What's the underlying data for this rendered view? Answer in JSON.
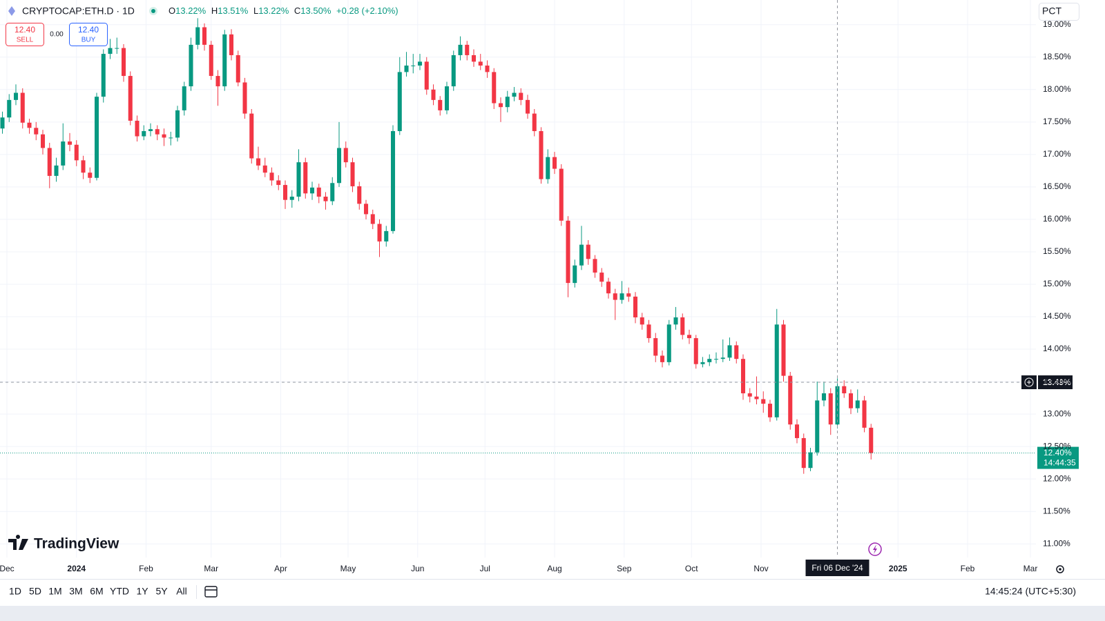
{
  "header": {
    "symbol": "CRYPTOCAP:ETH.D · 1D",
    "ohlc": [
      {
        "key": "O",
        "text": "13.22%"
      },
      {
        "key": "H",
        "text": "13.51%"
      },
      {
        "key": "L",
        "text": "13.22%"
      },
      {
        "key": "C",
        "text": "13.50%"
      }
    ],
    "change": "+0.28 (+2.10%)"
  },
  "trade": {
    "sell_price": "12.40",
    "sell_label": "SELL",
    "spread": "0.00",
    "buy_price": "12.40",
    "buy_label": "BUY"
  },
  "scale_mode": "PCT",
  "logo": "TradingView",
  "toolbar": {
    "ranges": [
      "1D",
      "5D",
      "1M",
      "3M",
      "6M",
      "YTD",
      "1Y",
      "5Y",
      "All"
    ],
    "clock": "14:45:24 (UTC+5:30)"
  },
  "chart_data": {
    "type": "candlestick",
    "up_color": "#089981",
    "down_color": "#f23645",
    "grid": true,
    "xlim": [
      -3.08,
      458.46
    ],
    "ylim": [
      10.79,
      19.38
    ],
    "xticks": [
      {
        "value": 0,
        "label": "Dec"
      },
      {
        "value": 31,
        "label": "2024"
      },
      {
        "value": 62,
        "label": "Feb"
      },
      {
        "value": 91,
        "label": "Mar"
      },
      {
        "value": 122,
        "label": "Apr"
      },
      {
        "value": 152,
        "label": "May"
      },
      {
        "value": 183,
        "label": "Jun"
      },
      {
        "value": 213,
        "label": "Jul"
      },
      {
        "value": 244,
        "label": "Aug"
      },
      {
        "value": 275,
        "label": "Sep"
      },
      {
        "value": 305,
        "label": "Oct"
      },
      {
        "value": 336,
        "label": "Nov"
      },
      {
        "value": 397,
        "label": "2025"
      },
      {
        "value": 428,
        "label": "Feb"
      },
      {
        "value": 456,
        "label": "Mar"
      }
    ],
    "yticks": [
      {
        "value": 11,
        "label": "11.00%"
      },
      {
        "value": 11.5,
        "label": "11.50%"
      },
      {
        "value": 12,
        "label": "12.00%"
      },
      {
        "value": 12.5,
        "label": "12.50%"
      },
      {
        "value": 13,
        "label": "13.00%"
      },
      {
        "value": 13.5,
        "label": "13.50%"
      },
      {
        "value": 14,
        "label": "14.00%"
      },
      {
        "value": 14.5,
        "label": "14.50%"
      },
      {
        "value": 15,
        "label": "15.00%"
      },
      {
        "value": 15.5,
        "label": "15.50%"
      },
      {
        "value": 16,
        "label": "16.00%"
      },
      {
        "value": 16.5,
        "label": "16.50%"
      },
      {
        "value": 17,
        "label": "17.00%"
      },
      {
        "value": 17.5,
        "label": "17.50%"
      },
      {
        "value": 18,
        "label": "18.00%"
      },
      {
        "value": 18.5,
        "label": "18.50%"
      },
      {
        "value": 19,
        "label": "19.00%"
      }
    ],
    "crosshair": {
      "x": 370,
      "x_label": "Fri 06 Dec '24",
      "y": 13.49,
      "y_label": "13.49%"
    },
    "last_price": {
      "value": 12.4,
      "label": "12.40%",
      "countdown": "14:44:35"
    },
    "x": [
      -2,
      1,
      4,
      7,
      10,
      13,
      16,
      19,
      22,
      25,
      28,
      31,
      34,
      37,
      40,
      43,
      46,
      49,
      52,
      55,
      58,
      61,
      64,
      67,
      70,
      73,
      76,
      79,
      82,
      85,
      88,
      91,
      94,
      97,
      100,
      103,
      106,
      109,
      112,
      115,
      118,
      121,
      124,
      127,
      130,
      133,
      136,
      139,
      142,
      145,
      148,
      151,
      154,
      157,
      160,
      163,
      166,
      169,
      172,
      175,
      178,
      181,
      184,
      187,
      190,
      193,
      196,
      199,
      202,
      205,
      208,
      211,
      214,
      217,
      220,
      223,
      226,
      229,
      232,
      235,
      238,
      241,
      244,
      247,
      250,
      253,
      256,
      259,
      262,
      265,
      268,
      271,
      274,
      277,
      280,
      283,
      286,
      289,
      292,
      295,
      298,
      301,
      304,
      307,
      310,
      313,
      316,
      319,
      322,
      325,
      328,
      331,
      334,
      337,
      340,
      343,
      346,
      349,
      352,
      355,
      358,
      361,
      364,
      367,
      370,
      373,
      376,
      379,
      382,
      385
    ],
    "ohlc": [
      [
        17.4,
        17.66,
        17.32,
        17.57
      ],
      [
        17.57,
        17.93,
        17.5,
        17.84
      ],
      [
        17.84,
        18.08,
        17.76,
        17.95
      ],
      [
        17.95,
        18.02,
        17.4,
        17.49
      ],
      [
        17.49,
        17.55,
        17.32,
        17.41
      ],
      [
        17.41,
        17.5,
        17.22,
        17.31
      ],
      [
        17.31,
        17.38,
        17.0,
        17.1
      ],
      [
        17.1,
        17.18,
        16.48,
        16.67
      ],
      [
        16.67,
        16.95,
        16.58,
        16.83
      ],
      [
        16.83,
        17.48,
        16.76,
        17.2
      ],
      [
        17.2,
        17.33,
        17.05,
        17.15
      ],
      [
        17.15,
        17.22,
        16.82,
        16.91
      ],
      [
        16.91,
        16.98,
        16.62,
        16.72
      ],
      [
        16.72,
        16.8,
        16.56,
        16.64
      ],
      [
        16.64,
        17.95,
        16.6,
        17.89
      ],
      [
        17.89,
        18.62,
        17.8,
        18.55
      ],
      [
        18.55,
        18.78,
        18.47,
        18.64
      ],
      [
        18.64,
        18.8,
        18.55,
        18.64
      ],
      [
        18.64,
        18.7,
        18.12,
        18.21
      ],
      [
        18.21,
        18.28,
        17.45,
        17.52
      ],
      [
        17.52,
        17.6,
        17.2,
        17.28
      ],
      [
        17.28,
        17.45,
        17.22,
        17.36
      ],
      [
        17.36,
        17.48,
        17.28,
        17.39
      ],
      [
        17.39,
        17.45,
        17.22,
        17.31
      ],
      [
        17.31,
        17.4,
        17.13,
        17.26
      ],
      [
        17.26,
        17.35,
        17.14,
        17.26
      ],
      [
        17.26,
        17.75,
        17.2,
        17.68
      ],
      [
        17.68,
        18.12,
        17.6,
        18.05
      ],
      [
        18.05,
        18.8,
        17.98,
        18.69
      ],
      [
        18.69,
        19.1,
        18.62,
        18.96
      ],
      [
        18.96,
        19.02,
        18.6,
        18.69
      ],
      [
        18.69,
        18.75,
        18.15,
        18.21
      ],
      [
        18.21,
        18.3,
        17.75,
        18.05
      ],
      [
        18.05,
        18.92,
        17.98,
        18.85
      ],
      [
        18.85,
        18.93,
        18.45,
        18.53
      ],
      [
        18.53,
        18.6,
        18.05,
        18.11
      ],
      [
        18.11,
        18.18,
        17.55,
        17.63
      ],
      [
        17.63,
        17.7,
        16.86,
        16.94
      ],
      [
        16.94,
        17.12,
        16.76,
        16.83
      ],
      [
        16.83,
        16.95,
        16.65,
        16.72
      ],
      [
        16.72,
        16.8,
        16.52,
        16.6
      ],
      [
        16.6,
        16.68,
        16.45,
        16.53
      ],
      [
        16.53,
        16.6,
        16.16,
        16.3
      ],
      [
        16.3,
        16.45,
        16.18,
        16.35
      ],
      [
        16.35,
        17.08,
        16.28,
        16.88
      ],
      [
        16.88,
        16.95,
        16.32,
        16.4
      ],
      [
        16.4,
        16.58,
        16.3,
        16.49
      ],
      [
        16.49,
        16.55,
        16.25,
        16.35
      ],
      [
        16.35,
        16.42,
        16.15,
        16.28
      ],
      [
        16.28,
        16.65,
        16.22,
        16.56
      ],
      [
        16.56,
        17.5,
        16.5,
        17.1
      ],
      [
        17.1,
        17.2,
        16.8,
        16.88
      ],
      [
        16.88,
        16.95,
        16.42,
        16.51
      ],
      [
        16.51,
        16.58,
        16.15,
        16.24
      ],
      [
        16.24,
        16.3,
        16.0,
        16.08
      ],
      [
        16.08,
        16.15,
        15.85,
        15.93
      ],
      [
        15.93,
        16.0,
        15.42,
        15.66
      ],
      [
        15.66,
        15.9,
        15.58,
        15.82
      ],
      [
        15.82,
        17.45,
        15.78,
        17.36
      ],
      [
        17.36,
        18.5,
        17.3,
        18.27
      ],
      [
        18.27,
        18.58,
        18.2,
        18.37
      ],
      [
        18.37,
        18.55,
        18.25,
        18.37
      ],
      [
        18.37,
        18.55,
        18.3,
        18.43
      ],
      [
        18.43,
        18.5,
        17.92,
        18.0
      ],
      [
        18.0,
        18.08,
        17.76,
        17.84
      ],
      [
        17.84,
        17.9,
        17.6,
        17.68
      ],
      [
        17.68,
        18.12,
        17.62,
        18.05
      ],
      [
        18.05,
        18.6,
        17.98,
        18.53
      ],
      [
        18.53,
        18.82,
        18.45,
        18.69
      ],
      [
        18.69,
        18.75,
        18.45,
        18.53
      ],
      [
        18.53,
        18.62,
        18.35,
        18.43
      ],
      [
        18.43,
        18.55,
        18.3,
        18.37
      ],
      [
        18.37,
        18.45,
        18.18,
        18.27
      ],
      [
        18.27,
        18.33,
        17.7,
        17.79
      ],
      [
        17.79,
        17.88,
        17.5,
        17.73
      ],
      [
        17.73,
        17.98,
        17.65,
        17.89
      ],
      [
        17.89,
        18.04,
        17.82,
        17.95
      ],
      [
        17.95,
        18.02,
        17.76,
        17.84
      ],
      [
        17.84,
        17.92,
        17.55,
        17.63
      ],
      [
        17.63,
        17.7,
        17.28,
        17.36
      ],
      [
        17.36,
        17.42,
        16.55,
        16.62
      ],
      [
        16.62,
        17.08,
        16.55,
        16.96
      ],
      [
        16.96,
        17.04,
        16.7,
        16.78
      ],
      [
        16.78,
        16.85,
        15.9,
        15.98
      ],
      [
        15.98,
        16.05,
        14.8,
        15.02
      ],
      [
        15.02,
        15.38,
        14.95,
        15.29
      ],
      [
        15.29,
        15.9,
        15.22,
        15.61
      ],
      [
        15.61,
        15.68,
        15.3,
        15.39
      ],
      [
        15.39,
        15.45,
        15.1,
        15.18
      ],
      [
        15.18,
        15.25,
        14.96,
        15.04
      ],
      [
        15.04,
        15.1,
        14.78,
        14.86
      ],
      [
        14.86,
        14.93,
        14.45,
        14.76
      ],
      [
        14.76,
        15.05,
        14.7,
        14.86
      ],
      [
        14.86,
        14.95,
        14.73,
        14.81
      ],
      [
        14.81,
        14.88,
        14.4,
        14.49
      ],
      [
        14.49,
        14.56,
        14.3,
        14.38
      ],
      [
        14.38,
        14.45,
        14.1,
        14.17
      ],
      [
        14.17,
        14.25,
        13.8,
        13.9
      ],
      [
        13.9,
        13.98,
        13.72,
        13.8
      ],
      [
        13.8,
        14.45,
        13.75,
        14.38
      ],
      [
        14.38,
        14.65,
        14.3,
        14.49
      ],
      [
        14.49,
        14.55,
        14.15,
        14.22
      ],
      [
        14.22,
        14.3,
        14.08,
        14.17
      ],
      [
        14.17,
        14.22,
        13.7,
        13.77
      ],
      [
        13.77,
        13.88,
        13.72,
        13.8
      ],
      [
        13.8,
        13.92,
        13.74,
        13.85
      ],
      [
        13.85,
        13.95,
        13.78,
        13.85
      ],
      [
        13.85,
        14.15,
        13.8,
        13.87
      ],
      [
        13.87,
        14.18,
        13.82,
        14.06
      ],
      [
        14.06,
        14.12,
        13.78,
        13.85
      ],
      [
        13.85,
        13.92,
        13.22,
        13.32
      ],
      [
        13.32,
        13.4,
        13.18,
        13.27
      ],
      [
        13.27,
        13.58,
        13.15,
        13.23
      ],
      [
        13.23,
        13.35,
        13.02,
        13.16
      ],
      [
        13.16,
        13.22,
        12.88,
        12.95
      ],
      [
        12.95,
        14.62,
        12.9,
        14.38
      ],
      [
        14.38,
        14.45,
        13.5,
        13.59
      ],
      [
        13.59,
        13.65,
        12.76,
        12.84
      ],
      [
        12.84,
        12.92,
        12.55,
        12.63
      ],
      [
        12.63,
        12.7,
        12.08,
        12.17
      ],
      [
        12.17,
        12.48,
        12.12,
        12.41
      ],
      [
        12.41,
        13.5,
        12.36,
        13.21
      ],
      [
        13.21,
        13.5,
        13.12,
        13.32
      ],
      [
        13.32,
        13.4,
        12.68,
        12.84
      ],
      [
        12.84,
        13.55,
        12.78,
        13.43
      ],
      [
        13.43,
        13.52,
        13.25,
        13.32
      ],
      [
        13.32,
        13.38,
        13.0,
        13.09
      ],
      [
        13.09,
        13.38,
        13.02,
        13.21
      ],
      [
        13.21,
        13.28,
        12.72,
        12.79
      ],
      [
        12.79,
        12.85,
        12.3,
        12.4
      ]
    ]
  }
}
